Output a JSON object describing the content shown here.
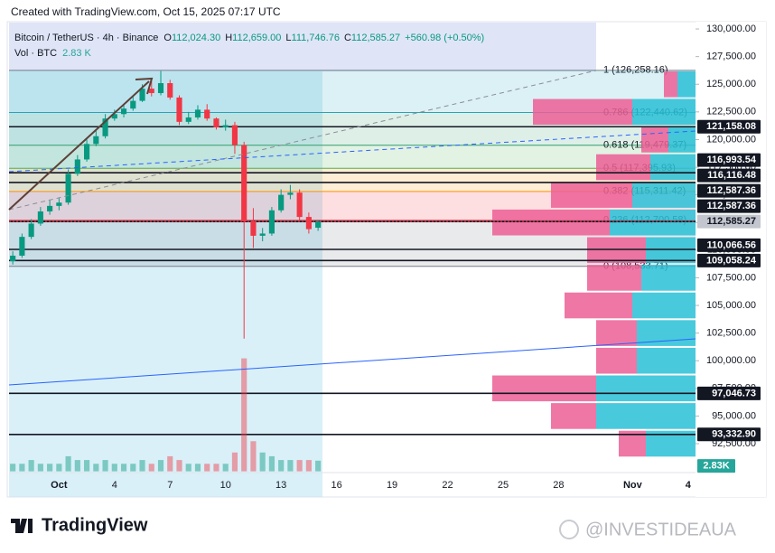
{
  "header": "Created with TradingView.com, Oct 15, 2025 07:17 UTC",
  "footer": {
    "logo": "TradingView",
    "watermark": "@INVESTIDEAUA"
  },
  "chart_data": {
    "type": "candlestick",
    "legend": {
      "symbol": "Bitcoin / TetherUS · 4h · Binance",
      "ohlc": [
        {
          "label": "O",
          "value": "112,024.30"
        },
        {
          "label": "H",
          "value": "112,659.00"
        },
        {
          "label": "L",
          "value": "111,746.76"
        },
        {
          "label": "C",
          "value": "112,585.27"
        }
      ],
      "change": "+560.98 (+0.50%)",
      "volume_label": "Vol · BTC",
      "volume_value": "2.83 K"
    },
    "x": [
      -1.5,
      -1,
      -0.5,
      0,
      0.5,
      1,
      1.5,
      2,
      2.5,
      3,
      3.5,
      4,
      4.5,
      5,
      5.5,
      6,
      6.5,
      7,
      7.5,
      8,
      8.5,
      9,
      9.5,
      10,
      10.5,
      11,
      11.5,
      12,
      12.5,
      13,
      13.5,
      14,
      14.5,
      15
    ],
    "open": [
      109000,
      109500,
      111200,
      112400,
      113500,
      114000,
      114300,
      116900,
      118200,
      119600,
      120300,
      121900,
      122300,
      122800,
      123500,
      124600,
      124200,
      125100,
      123800,
      121600,
      122000,
      122700,
      121900,
      121100,
      121300,
      119500,
      112600,
      111300,
      111500,
      113600,
      115000,
      115200,
      113000,
      112024.3
    ],
    "high": [
      109900,
      111500,
      112800,
      113900,
      114500,
      114700,
      117300,
      118600,
      120000,
      120800,
      122300,
      122700,
      123200,
      123900,
      125000,
      125300,
      126200,
      125400,
      124000,
      122500,
      123100,
      123200,
      122000,
      121800,
      121600,
      119800,
      113800,
      112000,
      113900,
      115500,
      115900,
      115500,
      113400,
      112659
    ],
    "low": [
      108700,
      109300,
      111000,
      112200,
      113200,
      113600,
      114100,
      116700,
      118000,
      119400,
      120100,
      121700,
      122000,
      122600,
      123400,
      123900,
      124000,
      123600,
      121300,
      121400,
      121800,
      121700,
      120900,
      120800,
      118700,
      102000,
      110200,
      110800,
      111300,
      113400,
      114600,
      112700,
      111500,
      111746.76
    ],
    "close": [
      109500,
      111200,
      112400,
      113500,
      114000,
      114300,
      116900,
      118200,
      119600,
      120300,
      121900,
      122300,
      122800,
      123500,
      124600,
      124200,
      125100,
      123800,
      121600,
      122000,
      122700,
      121900,
      121100,
      121300,
      119500,
      112600,
      111300,
      111500,
      113600,
      115000,
      115200,
      113000,
      111900,
      112585.27
    ],
    "volume": [
      2,
      2,
      3,
      2,
      2,
      2,
      4,
      3,
      3,
      2,
      3,
      2,
      2,
      2,
      3,
      2,
      3,
      4,
      3,
      2,
      2,
      2,
      2,
      2,
      5,
      30,
      8,
      5,
      4,
      3,
      3,
      3,
      3,
      2.83
    ],
    "up_color": "#089981",
    "down_color": "#f23645",
    "xlim": [
      -1.8,
      35.4
    ],
    "xticks": [
      {
        "value": 1,
        "label": "Oct"
      },
      4,
      7,
      10,
      13,
      16,
      19,
      22,
      25,
      28,
      {
        "value": 32,
        "label": "Nov"
      },
      {
        "value": 35,
        "label": "4"
      }
    ],
    "ylim": [
      90000,
      130600
    ],
    "yticks": [
      {
        "value": 92500,
        "label": "92,500.00"
      },
      {
        "value": 95000,
        "label": "95,000.00"
      },
      {
        "value": 97500,
        "label": "97,500.00"
      },
      {
        "value": 100000,
        "label": "100,000.00"
      },
      {
        "value": 102500,
        "label": "102,500.00"
      },
      {
        "value": 105000,
        "label": "105,000.00"
      },
      {
        "value": 107500,
        "label": "107,500.00"
      },
      {
        "value": 110000,
        "label": "110,000.00"
      },
      {
        "value": 112500,
        "label": "112,500.00"
      },
      {
        "value": 115000,
        "label": "115,000.00"
      },
      {
        "value": 117500,
        "label": "117,500.00"
      },
      {
        "value": 120000,
        "label": "120,000.00"
      },
      {
        "value": 122500,
        "label": "122,500.00"
      },
      {
        "value": 125000,
        "label": "125,000.00"
      },
      {
        "value": 127500,
        "label": "127,500.00"
      },
      {
        "value": 130000,
        "label": "130,000.00"
      }
    ],
    "levels": [
      {
        "value": 121158.08,
        "label": "121,158.08"
      },
      {
        "value": 116993.54,
        "label": "116,993.54"
      },
      {
        "value": 116116.48,
        "label": "116,116.48"
      },
      {
        "value": 112587.36,
        "label": "112,587.36"
      },
      {
        "value": 112587.36,
        "label": "112,587.36"
      },
      {
        "value": 110066.56,
        "label": "110,066.56"
      },
      {
        "value": 109058.24,
        "label": "109,058.24"
      },
      {
        "value": 97046.73,
        "label": "97,046.73"
      },
      {
        "value": 93332.9,
        "label": "93,332.90"
      }
    ],
    "last_price": {
      "value": 112585.27,
      "label": "112,585.27"
    },
    "volume_tag": "2.83K",
    "fib": [
      {
        "value": 126258.16,
        "label": "1 (126,258.16)",
        "color": "#787b86"
      },
      {
        "value": 122440.62,
        "label": "0.786 (122,440.62)",
        "color": "#26a6c0"
      },
      {
        "value": 119479.37,
        "label": "0.618 (119,479.37)",
        "color": "#2f9e6e"
      },
      {
        "value": 117395.93,
        "label": "0.5 (117,395.93)",
        "color": "#4caf50"
      },
      {
        "value": 115311.42,
        "label": "0.382 (115,311.42)",
        "color": "#ff9800"
      },
      {
        "value": 112700.58,
        "label": "0.236 (112,700.58)",
        "color": "#f23645"
      },
      {
        "value": 108533.71,
        "label": "0 (108,533.71)",
        "color": "#787b86"
      }
    ],
    "volume_profile": {
      "prices": [
        92500,
        95000,
        97500,
        100000,
        102500,
        105000,
        107500,
        110000,
        112500,
        115000,
        117500,
        120000,
        122500,
        125000
      ],
      "down": [
        30,
        50,
        115,
        45,
        45,
        75,
        60,
        65,
        130,
        90,
        60,
        30,
        110,
        15
      ],
      "up": [
        55,
        110,
        110,
        65,
        65,
        70,
        60,
        55,
        95,
        70,
        50,
        30,
        70,
        20
      ],
      "down_color": "#ec5f95",
      "up_color": "#29bfd6"
    }
  }
}
